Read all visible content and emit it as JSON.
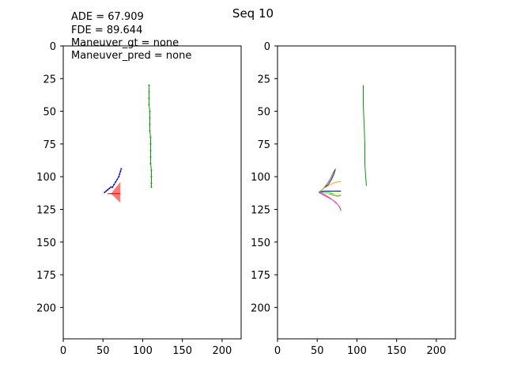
{
  "chart_data": {
    "type": "line",
    "title": "Seq 10",
    "panels": [
      {
        "id": "left",
        "stats": [
          "ADE = 67.909",
          "FDE = 89.644",
          "Maneuver_gt = none",
          "Maneuver_pred = none"
        ],
        "xlim": [
          0,
          224
        ],
        "ylim": [
          224,
          0
        ],
        "xticks": [
          0,
          50,
          100,
          150,
          200
        ],
        "yticks": [
          0,
          25,
          50,
          75,
          100,
          125,
          150,
          175,
          200
        ],
        "series": [
          {
            "color": "#00a000",
            "dotted": true,
            "points": [
              [
                108,
                30
              ],
              [
                108,
                35
              ],
              [
                108,
                40
              ],
              [
                108,
                45
              ],
              [
                109,
                50
              ],
              [
                109,
                55
              ],
              [
                109,
                60
              ],
              [
                109,
                65
              ],
              [
                110,
                70
              ],
              [
                110,
                75
              ],
              [
                110,
                80
              ],
              [
                110,
                85
              ],
              [
                110,
                90
              ],
              [
                111,
                95
              ],
              [
                111,
                100
              ],
              [
                111,
                105
              ],
              [
                111,
                108
              ]
            ]
          },
          {
            "color": "#0000ff",
            "dotted": true,
            "points": [
              [
                52,
                112
              ],
              [
                54,
                111
              ],
              [
                56,
                110
              ],
              [
                58,
                109
              ],
              [
                60,
                108
              ],
              [
                62,
                108
              ],
              [
                64,
                106
              ],
              [
                66,
                104
              ],
              [
                68,
                102
              ],
              [
                70,
                100
              ],
              [
                71,
                98
              ],
              [
                72,
                96
              ],
              [
                73,
                94
              ]
            ]
          },
          {
            "color": "#ff0000",
            "dotted": false,
            "points": [
              [
                56,
                113
              ],
              [
                60,
                113
              ],
              [
                64,
                113
              ],
              [
                68,
                113
              ],
              [
                72,
                113
              ]
            ]
          }
        ],
        "fan": {
          "color": "#ff6060",
          "points": [
            [
              60,
              113
            ],
            [
              72,
              104
            ],
            [
              72,
              120
            ]
          ]
        }
      },
      {
        "id": "right",
        "xlim": [
          0,
          224
        ],
        "ylim": [
          224,
          0
        ],
        "xticks": [
          0,
          50,
          100,
          150,
          200
        ],
        "yticks": [
          0,
          25,
          50,
          75,
          100,
          125,
          150,
          175,
          200
        ],
        "series": [
          {
            "color": "#00a000",
            "points": [
              [
                108,
                30
              ],
              [
                108,
                45
              ],
              [
                109,
                60
              ],
              [
                110,
                75
              ],
              [
                110,
                90
              ],
              [
                111,
                100
              ],
              [
                112,
                107
              ]
            ]
          },
          {
            "color": "#0000ff",
            "points": [
              [
                52,
                112
              ],
              [
                58,
                109
              ],
              [
                64,
                106
              ],
              [
                68,
                102
              ],
              [
                71,
                98
              ],
              [
                73,
                94
              ]
            ]
          },
          {
            "color": "#808000",
            "points": [
              [
                52,
                112
              ],
              [
                58,
                109
              ],
              [
                63,
                105
              ],
              [
                67,
                101
              ],
              [
                70,
                97
              ],
              [
                73,
                94
              ]
            ]
          },
          {
            "color": "#ffa500",
            "points": [
              [
                52,
                112
              ],
              [
                58,
                109
              ],
              [
                64,
                107
              ],
              [
                70,
                105
              ],
              [
                76,
                104
              ],
              [
                80,
                104
              ]
            ]
          },
          {
            "color": "#00c000",
            "points": [
              [
                52,
                112
              ],
              [
                58,
                112
              ],
              [
                64,
                113
              ],
              [
                70,
                114
              ],
              [
                76,
                115
              ],
              [
                80,
                114
              ]
            ]
          },
          {
            "color": "#ffff00",
            "points": [
              [
                52,
                112
              ],
              [
                58,
                112
              ],
              [
                64,
                113
              ],
              [
                70,
                113
              ],
              [
                76,
                113
              ],
              [
                78,
                112
              ]
            ]
          },
          {
            "color": "#0000aa",
            "points": [
              [
                52,
                112
              ],
              [
                58,
                111
              ],
              [
                64,
                111
              ],
              [
                70,
                111
              ],
              [
                76,
                111
              ],
              [
                80,
                111
              ]
            ]
          },
          {
            "color": "#ff1493",
            "points": [
              [
                52,
                112
              ],
              [
                58,
                114
              ],
              [
                64,
                116
              ],
              [
                70,
                118
              ],
              [
                74,
                120
              ],
              [
                78,
                123
              ],
              [
                80,
                126
              ]
            ]
          },
          {
            "color": "#ff69b4",
            "points": [
              [
                52,
                112
              ],
              [
                58,
                113
              ],
              [
                63,
                115
              ],
              [
                68,
                117
              ],
              [
                73,
                120
              ],
              [
                77,
                122
              ]
            ]
          },
          {
            "color": "#00ced1",
            "points": [
              [
                52,
                112
              ],
              [
                58,
                112
              ],
              [
                64,
                112
              ],
              [
                70,
                113
              ]
            ]
          }
        ]
      }
    ]
  }
}
